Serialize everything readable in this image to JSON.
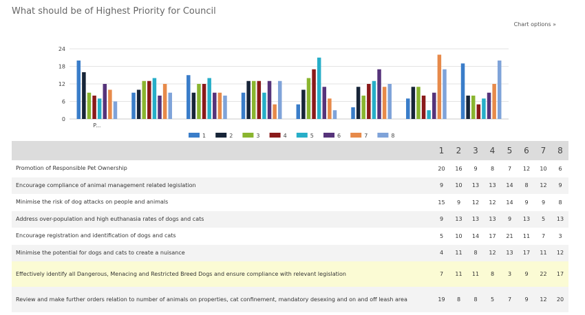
{
  "title": "What should be of Highest Priority for Council",
  "chart_options_label": "Chart options »",
  "colors": [
    "#3a7dc9",
    "#172538",
    "#8ab52f",
    "#8a1a1a",
    "#27aec8",
    "#56337a",
    "#e78a4a",
    "#7fa3d9"
  ],
  "chart_data": {
    "type": "bar",
    "categories": [
      "Promotion of Responsible Pet Ownership",
      "Encourage compliance of animal management related legislation",
      "Minimise the risk of dog attacks on people and animals",
      "Address over-population and high euthanasia rates of dogs and cats",
      "Encourage registration and identification of dogs and cats",
      "Minimise the potential for dogs and cats to create a nuisance",
      "Effectively identify all Dangerous, Menacing and Restricted Breed Dogs and ensure compliance with relevant legislation",
      "Review and make further orders relation to number of animals on properties, cat confinement, mandatory desexing and on and off leash area"
    ],
    "category_tick_labels": [
      "P..."
    ],
    "series": [
      {
        "name": "1",
        "values": [
          20,
          9,
          15,
          9,
          5,
          4,
          7,
          19
        ]
      },
      {
        "name": "2",
        "values": [
          16,
          10,
          9,
          13,
          10,
          11,
          11,
          8
        ]
      },
      {
        "name": "3",
        "values": [
          9,
          13,
          12,
          13,
          14,
          8,
          11,
          8
        ]
      },
      {
        "name": "4",
        "values": [
          8,
          13,
          12,
          13,
          17,
          12,
          8,
          5
        ]
      },
      {
        "name": "5",
        "values": [
          7,
          14,
          14,
          9,
          21,
          13,
          3,
          7
        ]
      },
      {
        "name": "6",
        "values": [
          12,
          8,
          9,
          13,
          11,
          17,
          9,
          9
        ]
      },
      {
        "name": "7",
        "values": [
          10,
          12,
          9,
          5,
          7,
          11,
          22,
          12
        ]
      },
      {
        "name": "8",
        "values": [
          6,
          9,
          8,
          13,
          3,
          12,
          17,
          20
        ]
      }
    ],
    "yticks": [
      0,
      6,
      12,
      18,
      24
    ],
    "ylim": [
      0,
      24
    ],
    "legend": "bottom",
    "grid": true
  },
  "table": {
    "columns": [
      "1",
      "2",
      "3",
      "4",
      "5",
      "6",
      "7",
      "8"
    ],
    "highlight_row": 6
  }
}
